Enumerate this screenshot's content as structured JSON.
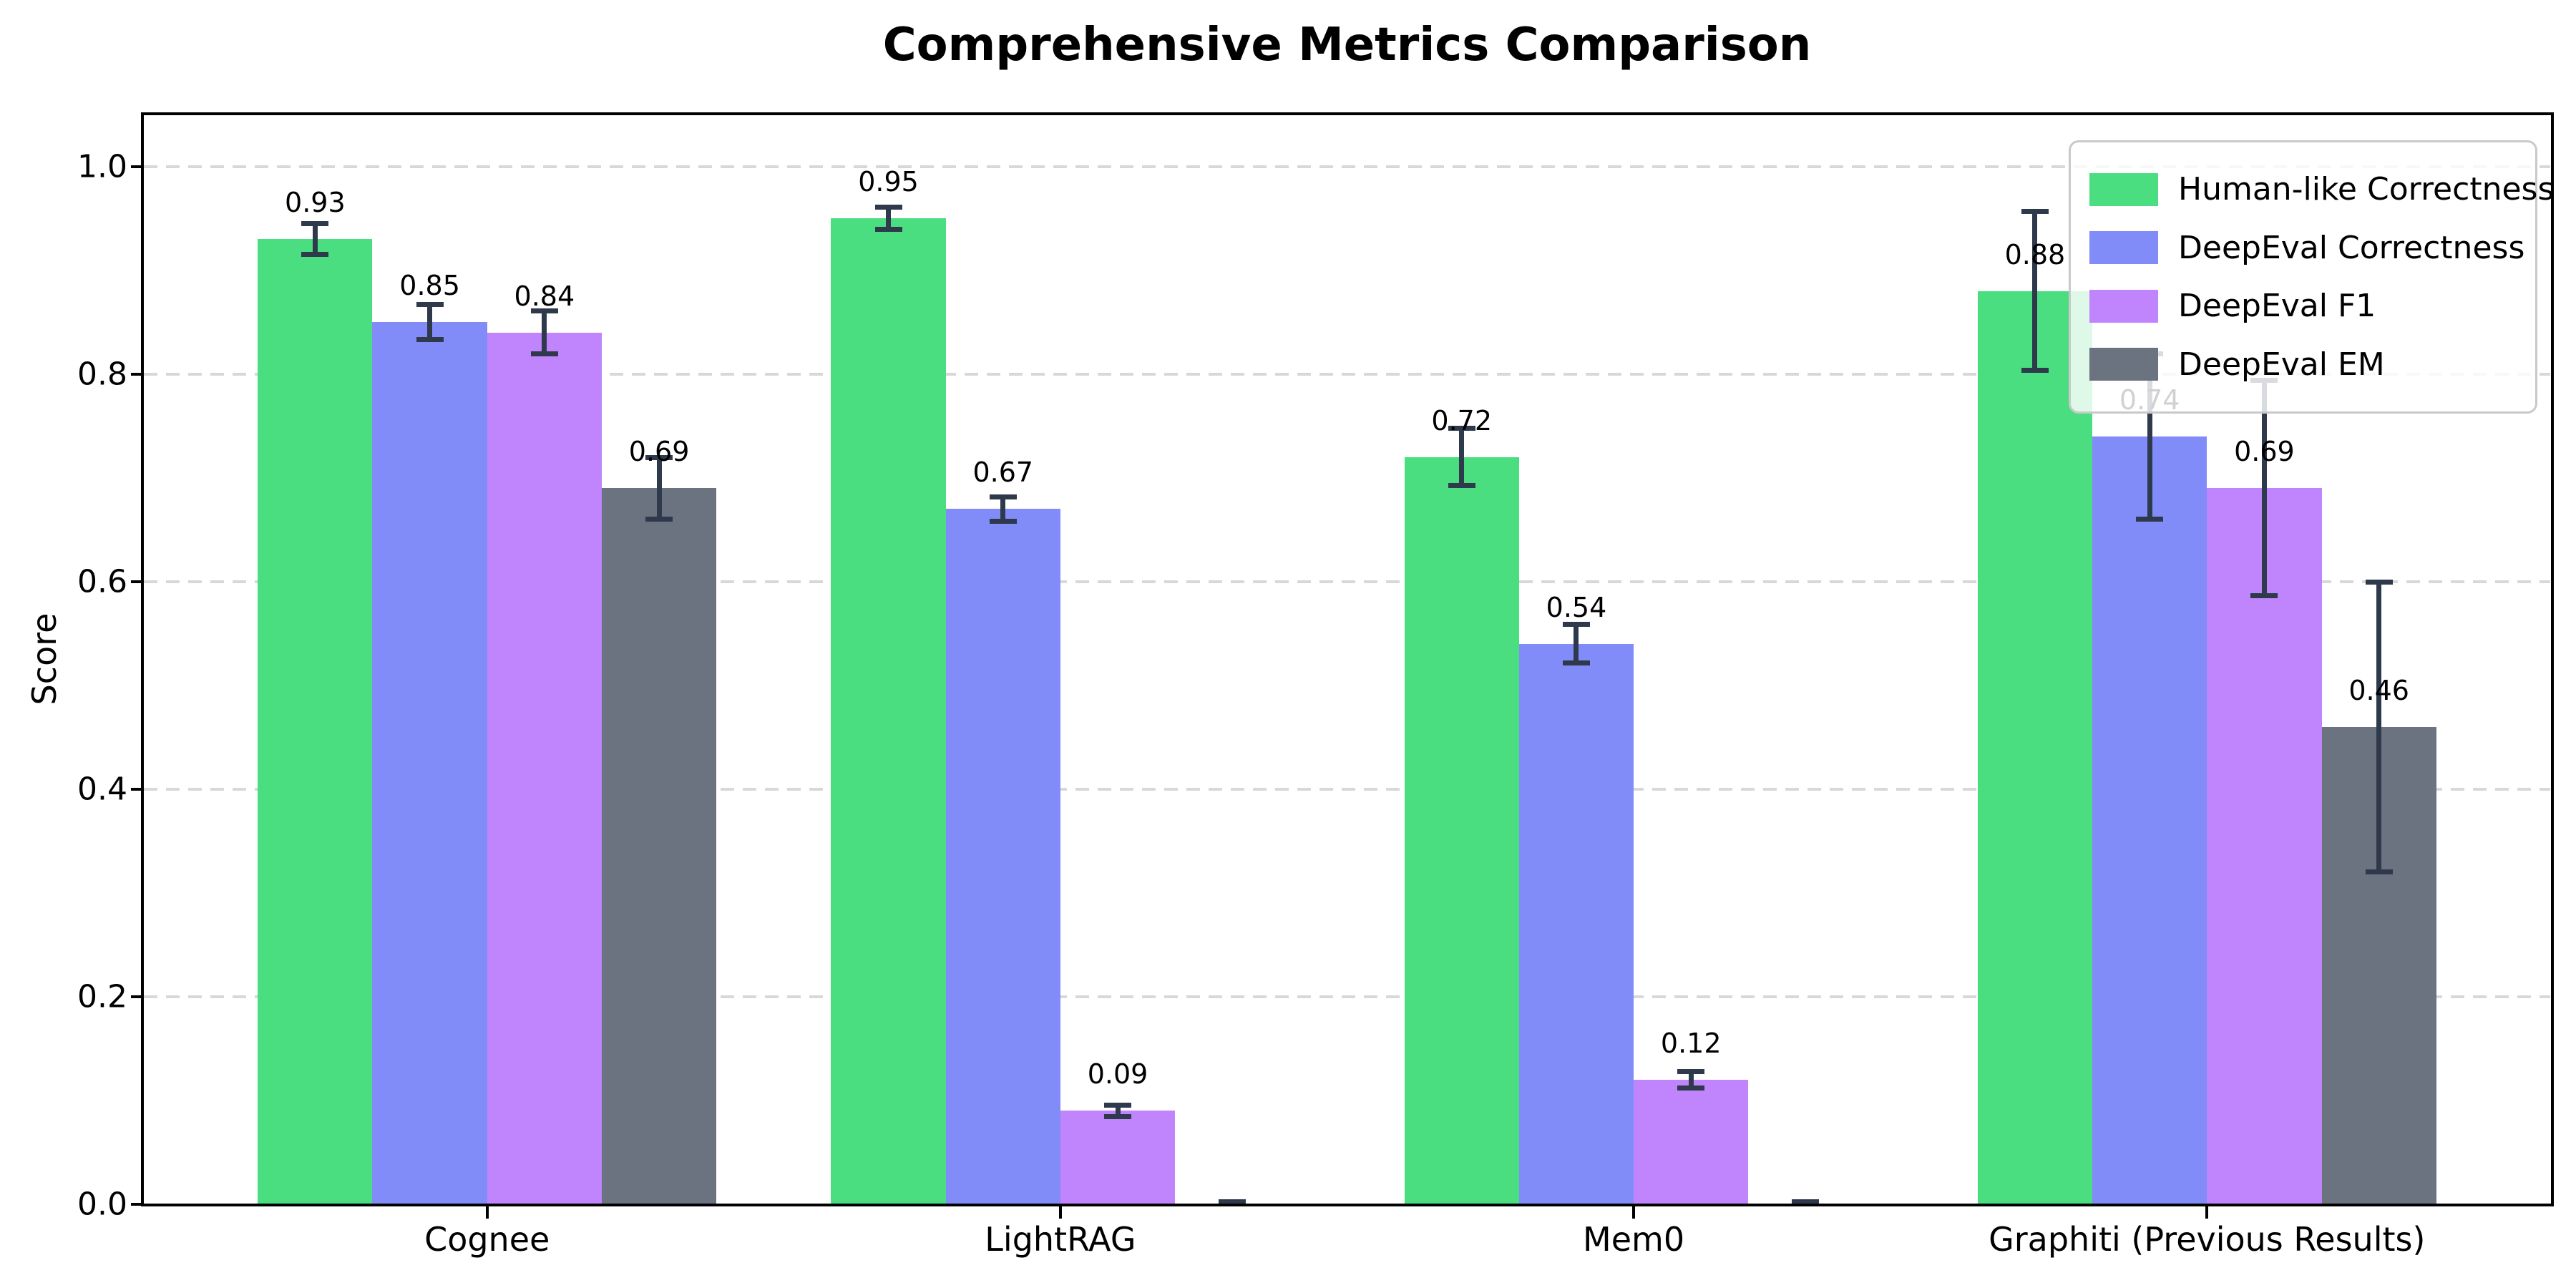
{
  "chart_data": {
    "type": "bar",
    "title": "Comprehensive Metrics Comparison",
    "xlabel": "",
    "ylabel": "Score",
    "categories": [
      "Cognee",
      "LightRAG",
      "Mem0",
      "Graphiti (Previous Results)"
    ],
    "series": [
      {
        "name": "Human-like Correctness",
        "color": "#4ade80",
        "values": [
          0.93,
          0.95,
          0.72,
          0.88
        ],
        "errors": [
          0.015,
          0.011,
          0.028,
          0.077
        ],
        "labels": [
          "0.93",
          "0.95",
          "0.72",
          "0.88"
        ]
      },
      {
        "name": "DeepEval Correctness",
        "color": "#818cf8",
        "values": [
          0.85,
          0.67,
          0.54,
          0.74
        ],
        "errors": [
          0.017,
          0.012,
          0.019,
          0.08
        ],
        "labels": [
          "0.85",
          "0.67",
          "0.54",
          "0.74"
        ]
      },
      {
        "name": "DeepEval F1",
        "color": "#c084fc",
        "values": [
          0.84,
          0.09,
          0.12,
          0.69
        ],
        "errors": [
          0.021,
          0.006,
          0.008,
          0.104
        ],
        "labels": [
          "0.84",
          "0.09",
          "0.12",
          "0.69"
        ]
      },
      {
        "name": "DeepEval EM",
        "color": "#6b7280",
        "values": [
          0.69,
          0.0,
          0.0,
          0.46
        ],
        "errors": [
          0.03,
          0.003,
          0.003,
          0.14
        ],
        "labels": [
          "0.69",
          null,
          null,
          "0.46"
        ]
      }
    ],
    "ytick_labels": [
      "0.0",
      "0.2",
      "0.4",
      "0.6",
      "0.8",
      "1.0"
    ],
    "yticks": [
      0.0,
      0.2,
      0.4,
      0.6,
      0.8,
      1.0
    ],
    "ylim": [
      0,
      1.05
    ],
    "grid": "horizontal-dashed",
    "legend_position": "upper-right",
    "colors": {
      "grid": "#d8d8d8",
      "spine": "#000000",
      "error_bar": "#2e3a4c",
      "background": "#ffffff",
      "legend_border": "#c9c9c9"
    }
  }
}
